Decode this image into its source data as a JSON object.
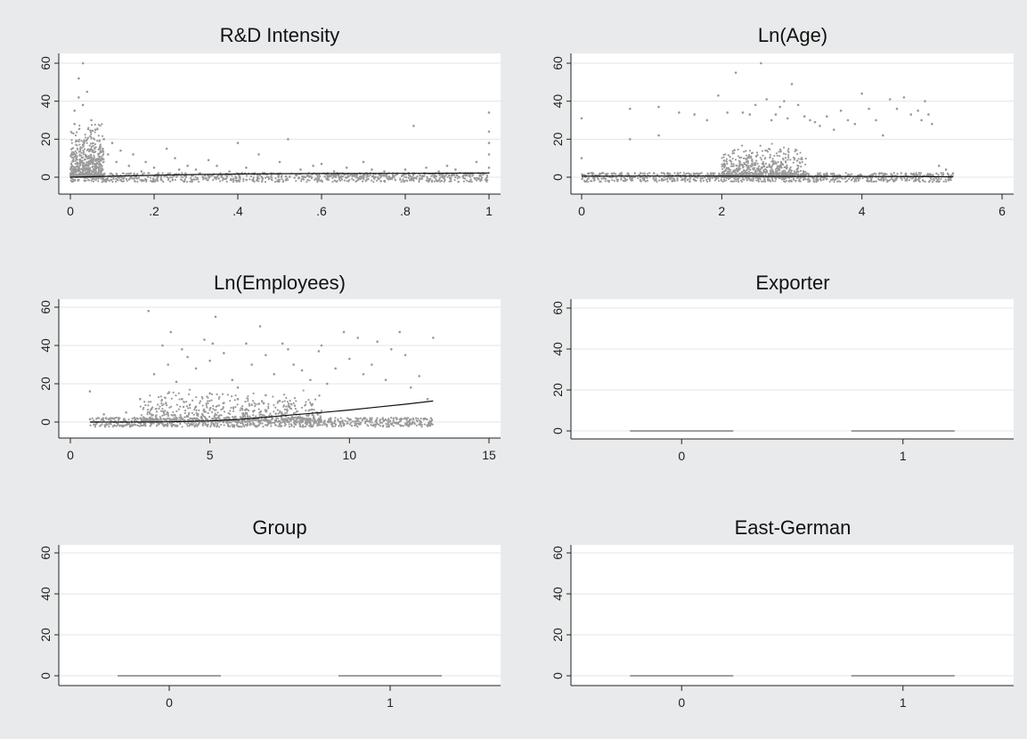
{
  "chart_data": [
    {
      "type": "scatter",
      "title": "R&D Intensity",
      "xlim": [
        0,
        1
      ],
      "ylim": [
        0,
        60
      ],
      "x_ticks": [
        0,
        0.2,
        0.4,
        0.6,
        0.8,
        1
      ],
      "x_tick_labels": [
        "0",
        ".2",
        ".4",
        ".6",
        ".8",
        "1"
      ],
      "y_ticks": [
        0,
        20,
        40,
        60
      ],
      "y_tick_labels": [
        "0",
        "20",
        "40",
        "60"
      ],
      "grid": true,
      "fit_line": [
        [
          0,
          0
        ],
        [
          0.1,
          0.5
        ],
        [
          0.2,
          1.0
        ],
        [
          0.3,
          1.4
        ],
        [
          0.4,
          1.7
        ],
        [
          0.6,
          1.9
        ],
        [
          0.8,
          2.0
        ],
        [
          1,
          2.2
        ]
      ],
      "points": [
        [
          0.01,
          35
        ],
        [
          0.01,
          28
        ],
        [
          0.02,
          42
        ],
        [
          0.03,
          38
        ],
        [
          0.03,
          60
        ],
        [
          0.02,
          52
        ],
        [
          0.04,
          45
        ],
        [
          0.05,
          30
        ],
        [
          0.06,
          25
        ],
        [
          0.08,
          20
        ],
        [
          0.1,
          18
        ],
        [
          0.12,
          14
        ],
        [
          0.15,
          12
        ],
        [
          0.18,
          8
        ],
        [
          0.2,
          5
        ],
        [
          0.23,
          15
        ],
        [
          0.25,
          10
        ],
        [
          0.28,
          6
        ],
        [
          0.3,
          4
        ],
        [
          0.33,
          9
        ],
        [
          0.35,
          6
        ],
        [
          0.38,
          3
        ],
        [
          0.4,
          18
        ],
        [
          0.42,
          5
        ],
        [
          0.45,
          12
        ],
        [
          0.48,
          2
        ],
        [
          0.5,
          8
        ],
        [
          0.52,
          20
        ],
        [
          0.55,
          4
        ],
        [
          0.58,
          6
        ],
        [
          0.6,
          7
        ],
        [
          0.63,
          3
        ],
        [
          0.66,
          5
        ],
        [
          0.7,
          8
        ],
        [
          0.72,
          4
        ],
        [
          0.75,
          3
        ],
        [
          0.78,
          2
        ],
        [
          0.8,
          4
        ],
        [
          0.82,
          27
        ],
        [
          0.85,
          5
        ],
        [
          0.88,
          3
        ],
        [
          0.9,
          6
        ],
        [
          0.92,
          4
        ],
        [
          0.95,
          2
        ],
        [
          0.97,
          8
        ],
        [
          1.0,
          34
        ],
        [
          1.0,
          24
        ],
        [
          1.0,
          18
        ],
        [
          1.0,
          12
        ],
        [
          1.0,
          5
        ],
        [
          0.05,
          10
        ],
        [
          0.07,
          15
        ],
        [
          0.09,
          12
        ],
        [
          0.11,
          8
        ],
        [
          0.14,
          6
        ],
        [
          0.17,
          3
        ],
        [
          0.21,
          2
        ],
        [
          0.26,
          4
        ],
        [
          0.31,
          2
        ],
        [
          0.36,
          1
        ],
        [
          0.44,
          2
        ],
        [
          0.54,
          1
        ],
        [
          0.65,
          2
        ],
        [
          0.74,
          1
        ]
      ]
    },
    {
      "type": "scatter",
      "title": "Ln(Age)",
      "xlim": [
        0,
        6
      ],
      "ylim": [
        0,
        60
      ],
      "x_ticks": [
        0,
        2,
        4,
        6
      ],
      "x_tick_labels": [
        "0",
        "2",
        "4",
        "6"
      ],
      "y_ticks": [
        0,
        20,
        40,
        60
      ],
      "y_tick_labels": [
        "0",
        "20",
        "40",
        "60"
      ],
      "grid": true,
      "fit_line": [
        [
          0,
          0.5
        ],
        [
          1,
          0.6
        ],
        [
          2,
          0.5
        ],
        [
          3,
          0.4
        ],
        [
          4,
          0.4
        ],
        [
          5,
          0.3
        ],
        [
          5.3,
          0.2
        ]
      ],
      "points": [
        [
          0,
          31
        ],
        [
          0,
          10
        ],
        [
          0.69,
          36
        ],
        [
          0.69,
          20
        ],
        [
          1.1,
          37
        ],
        [
          1.1,
          22
        ],
        [
          1.39,
          34
        ],
        [
          1.61,
          33
        ],
        [
          1.79,
          30
        ],
        [
          1.95,
          43
        ],
        [
          2.08,
          34
        ],
        [
          2.2,
          55
        ],
        [
          2.3,
          34
        ],
        [
          2.4,
          33
        ],
        [
          2.48,
          38
        ],
        [
          2.56,
          60
        ],
        [
          2.64,
          41
        ],
        [
          2.71,
          30
        ],
        [
          2.77,
          33
        ],
        [
          2.83,
          37
        ],
        [
          2.89,
          40
        ],
        [
          2.94,
          31
        ],
        [
          3.0,
          49
        ],
        [
          3.09,
          38
        ],
        [
          3.18,
          32
        ],
        [
          3.26,
          30
        ],
        [
          3.33,
          29
        ],
        [
          3.4,
          27
        ],
        [
          3.5,
          32
        ],
        [
          3.6,
          25
        ],
        [
          3.7,
          35
        ],
        [
          3.8,
          30
        ],
        [
          3.9,
          28
        ],
        [
          4.0,
          44
        ],
        [
          4.1,
          36
        ],
        [
          4.2,
          30
        ],
        [
          4.3,
          22
        ],
        [
          4.4,
          41
        ],
        [
          4.5,
          36
        ],
        [
          4.6,
          42
        ],
        [
          4.7,
          33
        ],
        [
          4.8,
          35
        ],
        [
          4.85,
          30
        ],
        [
          4.9,
          40
        ],
        [
          4.95,
          33
        ],
        [
          5.0,
          28
        ],
        [
          5.1,
          6
        ],
        [
          5.2,
          4
        ],
        [
          5.3,
          2
        ]
      ]
    },
    {
      "type": "scatter",
      "title": "Ln(Employees)",
      "xlim": [
        0,
        15
      ],
      "ylim": [
        0,
        60
      ],
      "x_ticks": [
        0,
        5,
        10,
        15
      ],
      "x_tick_labels": [
        "0",
        "5",
        "10",
        "15"
      ],
      "y_ticks": [
        0,
        20,
        40,
        60
      ],
      "y_tick_labels": [
        "0",
        "20",
        "40",
        "60"
      ],
      "grid": true,
      "fit_line": [
        [
          0.7,
          0
        ],
        [
          2,
          0
        ],
        [
          3.5,
          0.1
        ],
        [
          5,
          0.6
        ],
        [
          6,
          1.3
        ],
        [
          7,
          2.5
        ],
        [
          8,
          3.8
        ],
        [
          9,
          5.0
        ],
        [
          10,
          6.3
        ],
        [
          11,
          7.8
        ],
        [
          12,
          9.3
        ],
        [
          13,
          11
        ]
      ],
      "points": [
        [
          0.7,
          16
        ],
        [
          1.2,
          4
        ],
        [
          2.0,
          5
        ],
        [
          2.5,
          12
        ],
        [
          2.8,
          58
        ],
        [
          3.0,
          25
        ],
        [
          3.3,
          40
        ],
        [
          3.5,
          30
        ],
        [
          3.6,
          47
        ],
        [
          3.8,
          21
        ],
        [
          4.0,
          38
        ],
        [
          4.2,
          34
        ],
        [
          4.5,
          28
        ],
        [
          4.8,
          43
        ],
        [
          5.0,
          32
        ],
        [
          5.1,
          41
        ],
        [
          5.2,
          55
        ],
        [
          5.5,
          36
        ],
        [
          5.8,
          22
        ],
        [
          6.0,
          18
        ],
        [
          6.3,
          41
        ],
        [
          6.5,
          30
        ],
        [
          6.8,
          50
        ],
        [
          7.0,
          35
        ],
        [
          7.3,
          25
        ],
        [
          7.6,
          41
        ],
        [
          7.8,
          38
        ],
        [
          8.0,
          30
        ],
        [
          8.3,
          27
        ],
        [
          8.6,
          22
        ],
        [
          8.9,
          37
        ],
        [
          9.0,
          40
        ],
        [
          9.2,
          20
        ],
        [
          9.5,
          28
        ],
        [
          9.8,
          47
        ],
        [
          10.0,
          33
        ],
        [
          10.3,
          44
        ],
        [
          10.5,
          25
        ],
        [
          10.8,
          30
        ],
        [
          11.0,
          42
        ],
        [
          11.3,
          22
        ],
        [
          11.5,
          38
        ],
        [
          11.8,
          47
        ],
        [
          12.0,
          35
        ],
        [
          12.2,
          18
        ],
        [
          12.5,
          24
        ],
        [
          12.8,
          12
        ],
        [
          13.0,
          44
        ],
        [
          4.0,
          12
        ],
        [
          4.5,
          8
        ],
        [
          5.0,
          15
        ],
        [
          5.5,
          10
        ],
        [
          6.0,
          12
        ],
        [
          6.5,
          9
        ],
        [
          7.0,
          14
        ],
        [
          7.5,
          11
        ]
      ]
    },
    {
      "type": "box",
      "title": "Exporter",
      "categories": [
        "0",
        "1"
      ],
      "values": [
        0,
        0
      ],
      "ylim": [
        0,
        60
      ],
      "y_ticks": [
        0,
        20,
        40,
        60
      ],
      "y_tick_labels": [
        "0",
        "20",
        "40",
        "60"
      ],
      "grid": true
    },
    {
      "type": "box",
      "title": "Group",
      "categories": [
        "0",
        "1"
      ],
      "values": [
        0,
        0
      ],
      "ylim": [
        0,
        60
      ],
      "y_ticks": [
        0,
        20,
        40,
        60
      ],
      "y_tick_labels": [
        "0",
        "20",
        "40",
        "60"
      ],
      "grid": true
    },
    {
      "type": "box",
      "title": "East-German",
      "categories": [
        "0",
        "1"
      ],
      "values": [
        0,
        0
      ],
      "ylim": [
        0,
        60
      ],
      "y_ticks": [
        0,
        20,
        40,
        60
      ],
      "y_tick_labels": [
        "0",
        "20",
        "40",
        "60"
      ],
      "grid": true
    }
  ]
}
